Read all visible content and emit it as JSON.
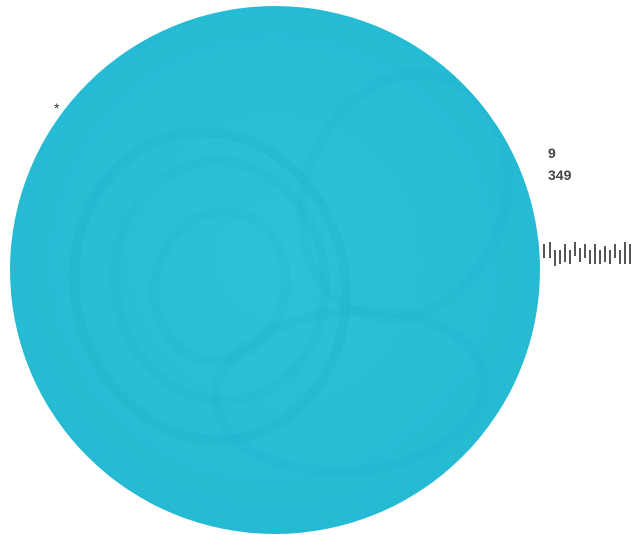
{
  "marks": {
    "star": "*",
    "number_1": "9",
    "number_2": "349"
  },
  "colors": {
    "disc": "#27bdd5",
    "background": "#ffffff",
    "text": "#444444"
  },
  "icons": [
    "barcode-icon"
  ]
}
